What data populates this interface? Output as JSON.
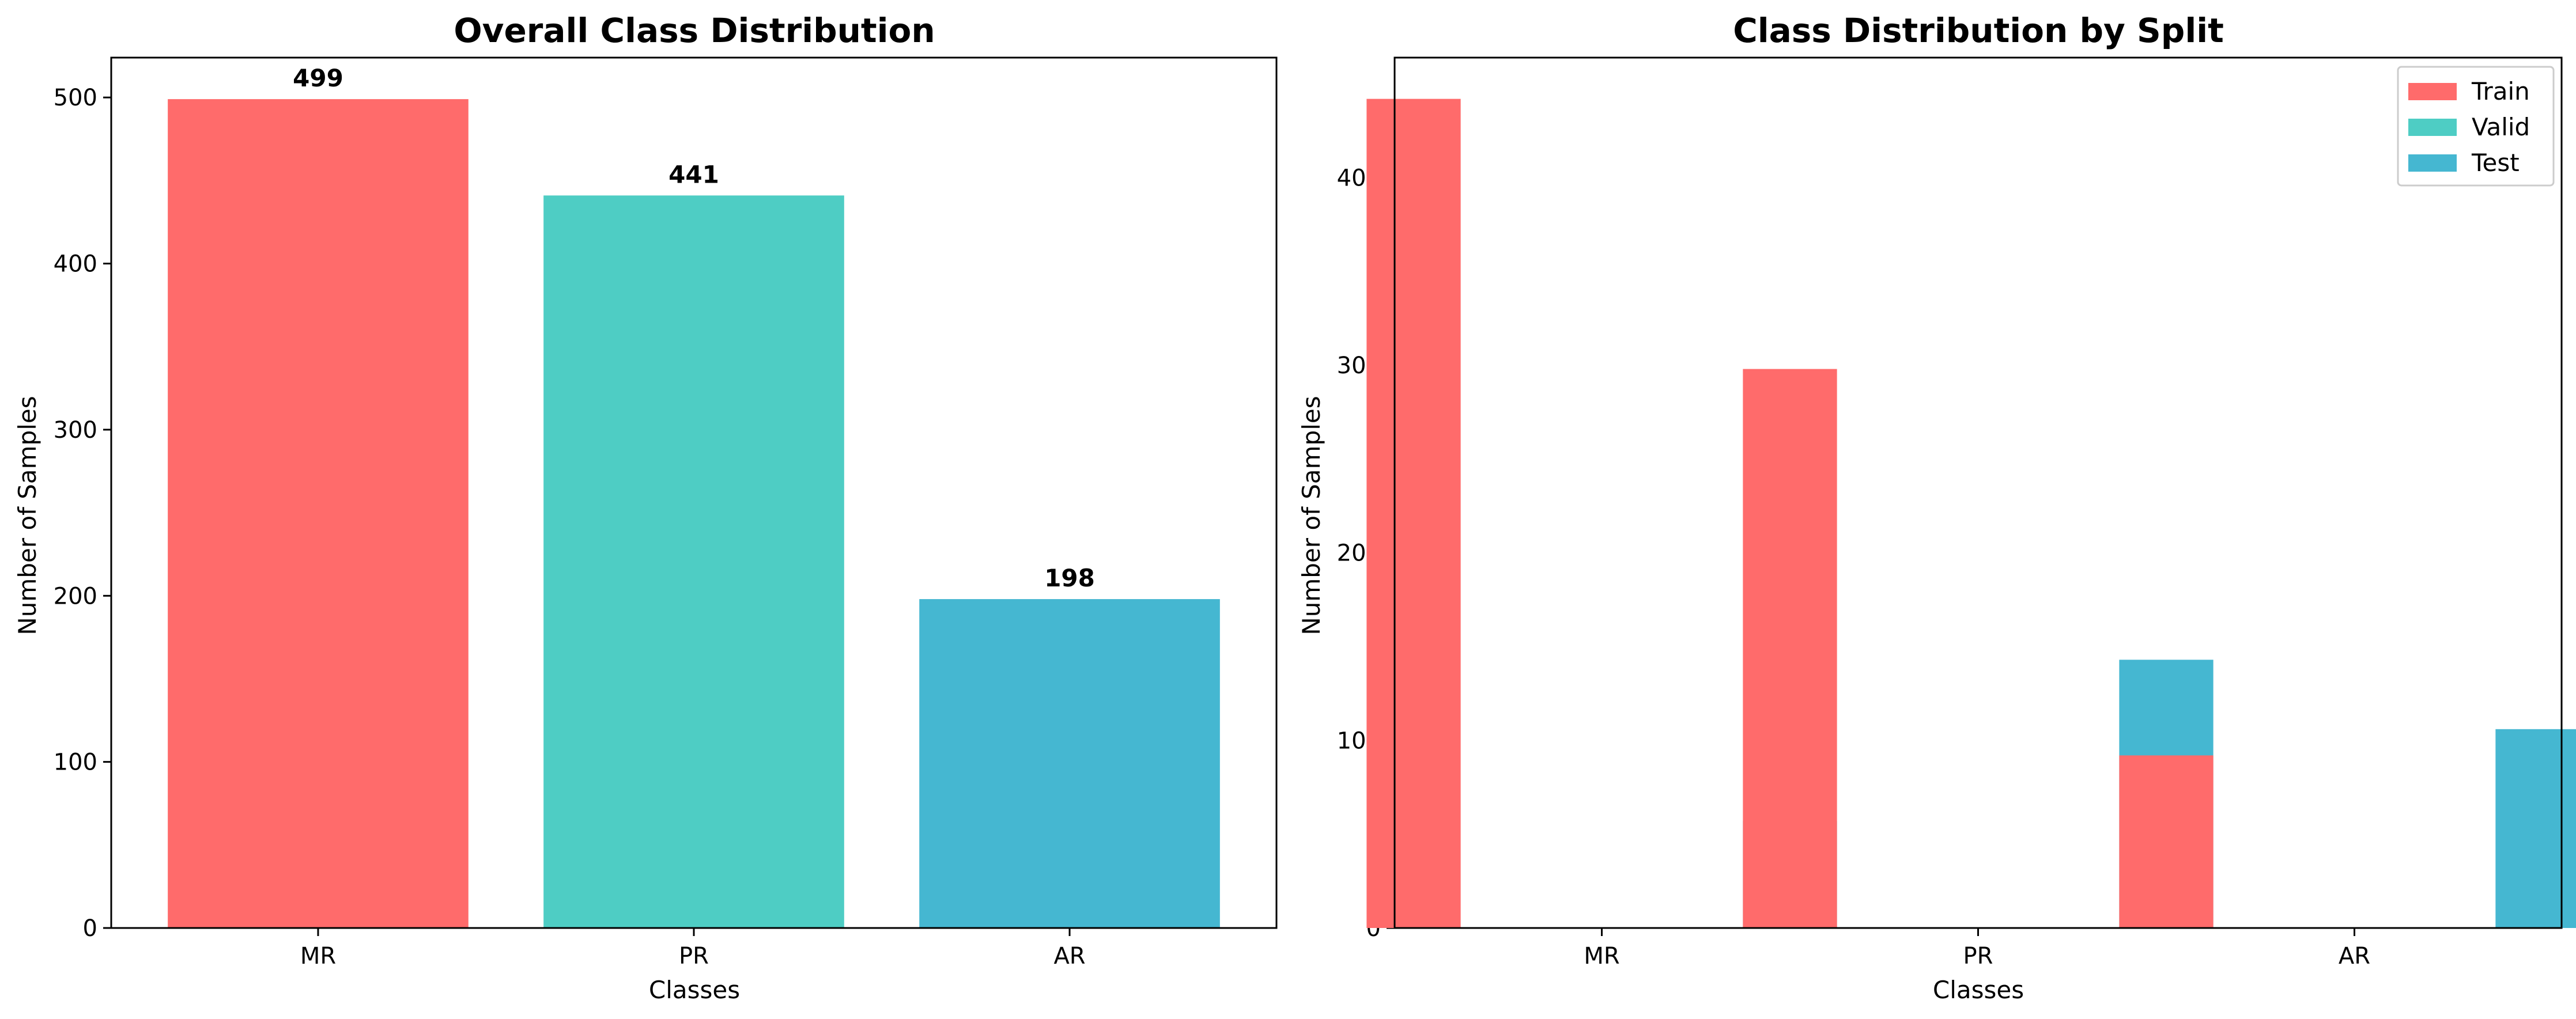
{
  "chart_data": [
    {
      "type": "bar",
      "title": "Overall Class Distribution",
      "xlabel": "Classes",
      "ylabel": "Number of Samples",
      "categories": [
        "MR",
        "PR",
        "AR"
      ],
      "values": [
        499,
        441,
        198
      ],
      "data_labels": [
        "499",
        "441",
        "198"
      ],
      "colors": [
        "#FF6B6B",
        "#4ECDC4",
        "#45B7D1"
      ],
      "ylim": [
        0,
        524
      ],
      "yticks": [
        0,
        100,
        200,
        300,
        400,
        500
      ],
      "grid": false,
      "legend": null
    },
    {
      "type": "bar",
      "title": "Class Distribution by Split",
      "xlabel": "Classes",
      "ylabel": "Number of Samples",
      "categories": [
        "MR",
        "PR",
        "AR"
      ],
      "series": [
        {
          "name": "Train",
          "values": [
            442,
            298,
            92
          ],
          "color": "#FF6B6B"
        },
        {
          "name": "Valid",
          "values": [
            0,
            0,
            0
          ],
          "color": "#4ECDC4"
        },
        {
          "name": "Test",
          "values": [
            57,
            143,
            106
          ],
          "color": "#45B7D1"
        }
      ],
      "ylim": [
        0,
        464
      ],
      "yticks": [
        0,
        100,
        200,
        300,
        400
      ],
      "grid": false,
      "legend": "top-right"
    }
  ]
}
